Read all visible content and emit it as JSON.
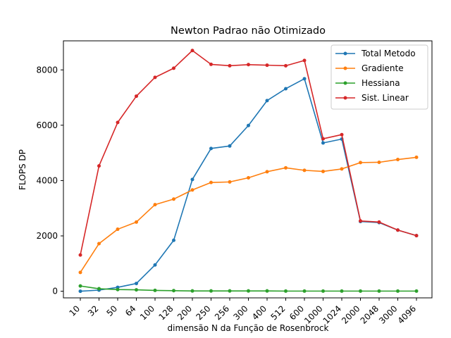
{
  "chart_data": {
    "type": "line",
    "title": "Newton Padrao não Otimizado",
    "xlabel": "dimensão N da Função de Rosenbrock",
    "ylabel": "FLOPS DP",
    "categories": [
      "10",
      "32",
      "50",
      "64",
      "100",
      "128",
      "200",
      "250",
      "256",
      "300",
      "400",
      "512",
      "600",
      "1000",
      "1024",
      "2000",
      "2048",
      "3000",
      "4096"
    ],
    "ylim": [
      -240,
      9050
    ],
    "yticks": [
      0,
      2000,
      4000,
      6000,
      8000
    ],
    "legend_position": "top-right",
    "grid": false,
    "series": [
      {
        "name": "Total Metodo",
        "color": "#1f77b4",
        "values": [
          0,
          40,
          140,
          280,
          950,
          1840,
          4040,
          5160,
          5250,
          5990,
          6890,
          7320,
          7680,
          5360,
          5500,
          2520,
          2480,
          2210,
          2010
        ]
      },
      {
        "name": "Gradiente",
        "color": "#ff7f0e",
        "values": [
          680,
          1720,
          2240,
          2500,
          3130,
          3330,
          3660,
          3930,
          3950,
          4100,
          4320,
          4460,
          4370,
          4330,
          4420,
          4650,
          4660,
          4760,
          4840
        ]
      },
      {
        "name": "Hessiana",
        "color": "#2ca02c",
        "values": [
          190,
          90,
          60,
          50,
          30,
          20,
          10,
          10,
          10,
          10,
          10,
          5,
          5,
          5,
          5,
          5,
          5,
          5,
          5
        ]
      },
      {
        "name": "Sist. Linear",
        "color": "#d62728",
        "values": [
          1310,
          4530,
          6100,
          7050,
          7730,
          8060,
          8700,
          8200,
          8150,
          8190,
          8170,
          8150,
          8340,
          5510,
          5660,
          2540,
          2500,
          2210,
          2010
        ]
      }
    ]
  }
}
